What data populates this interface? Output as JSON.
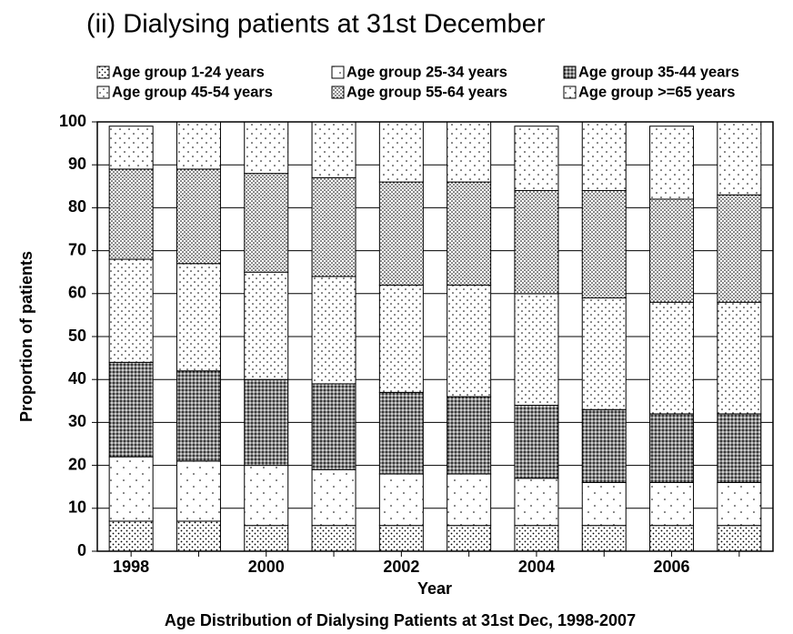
{
  "chart_data": {
    "type": "stacked_bar",
    "title": "(ii) Dialysing patients at 31st December",
    "caption": "Age Distribution of Dialysing Patients at 31st Dec, 1998-2007",
    "xlabel": "Year",
    "ylabel": "Proportion of patients",
    "categories": [
      "1998",
      null,
      "2000",
      null,
      "2002",
      null,
      "2004",
      null,
      "2006",
      null
    ],
    "series": [
      {
        "name": "Age group 1-24 years",
        "values": [
          7,
          7,
          6,
          6,
          6,
          6,
          6,
          6,
          6,
          6
        ]
      },
      {
        "name": "Age group 25-34 years",
        "values": [
          15,
          14,
          14,
          13,
          12,
          12,
          11,
          10,
          10,
          10
        ]
      },
      {
        "name": "Age group 35-44 years",
        "values": [
          22,
          21,
          20,
          20,
          19,
          18,
          17,
          17,
          16,
          16
        ]
      },
      {
        "name": "Age group 45-54 years",
        "values": [
          24,
          25,
          25,
          25,
          25,
          26,
          26,
          26,
          26,
          26
        ]
      },
      {
        "name": "Age group 55-64 years",
        "values": [
          21,
          22,
          23,
          23,
          24,
          24,
          24,
          25,
          24,
          25
        ]
      },
      {
        "name": "Age group >=65 years",
        "values": [
          10,
          11,
          12,
          13,
          14,
          14,
          15,
          16,
          17,
          17
        ]
      }
    ],
    "ylim": [
      0,
      100
    ],
    "yticks": [
      0,
      10,
      20,
      30,
      40,
      50,
      60,
      70,
      80,
      90,
      100
    ],
    "grid": true,
    "legend": "top"
  }
}
